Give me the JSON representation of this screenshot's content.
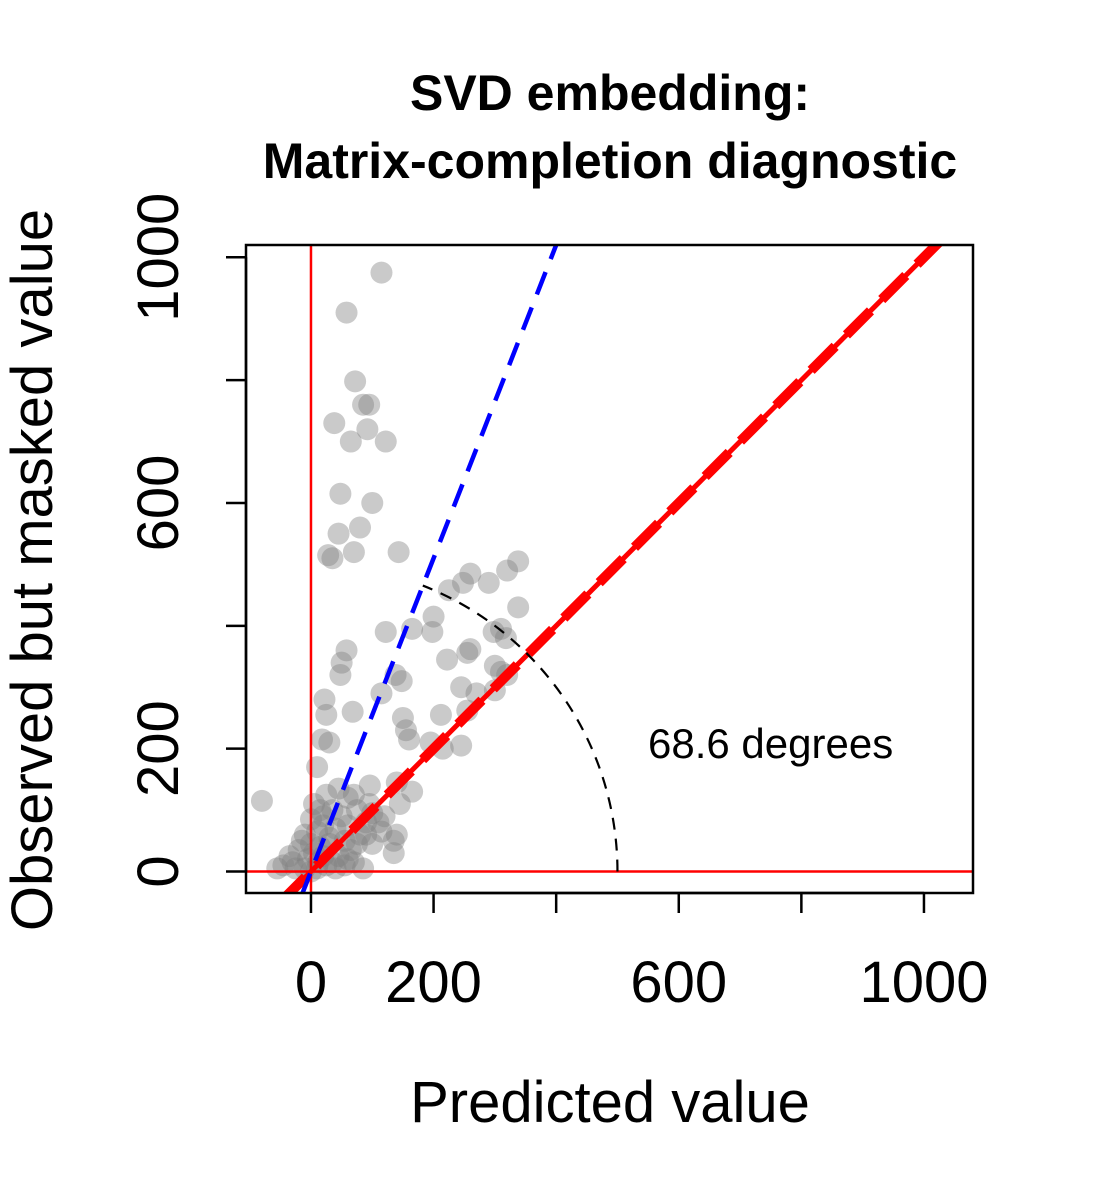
{
  "chart_data": {
    "type": "scatter",
    "title_lines": [
      "SVD embedding:",
      "Matrix-completion diagnostic"
    ],
    "xlabel": "Predicted value",
    "ylabel": "Observed but masked value",
    "xlim": [
      -106,
      1080
    ],
    "ylim": [
      -35,
      1020
    ],
    "xticks": [
      0,
      200,
      400,
      600,
      800,
      1000
    ],
    "xtick_labels": [
      "0",
      "200",
      "",
      "600",
      "",
      "1000"
    ],
    "yticks": [
      0,
      200,
      400,
      600,
      800,
      1000
    ],
    "ytick_labels": [
      "0",
      "200",
      "",
      "600",
      "",
      "1000"
    ],
    "grid": false,
    "legend": "none",
    "point_color": "#808080",
    "reference_axes_color": "#ff0000",
    "fit_line": {
      "color": "#ff0000",
      "style": "dashed",
      "slope": 1.0,
      "intercept": 0
    },
    "identity_line": {
      "color": "#ff0000",
      "style": "solid",
      "slope": 1.0,
      "intercept": 0
    },
    "steep_line": {
      "color": "#0000ff",
      "style": "dashed",
      "slope": 2.55,
      "intercept": 0
    },
    "angle_arc": {
      "radius": 500,
      "from_deg": 0,
      "to_deg": 68.6,
      "color": "#000000",
      "style": "dashed"
    },
    "annotation": "68.6 degrees",
    "points": [
      [
        -80,
        115
      ],
      [
        115,
        975
      ],
      [
        58,
        910
      ],
      [
        72,
        798
      ],
      [
        85,
        760
      ],
      [
        95,
        760
      ],
      [
        38,
        730
      ],
      [
        92,
        720
      ],
      [
        65,
        700
      ],
      [
        122,
        700
      ],
      [
        48,
        615
      ],
      [
        100,
        600
      ],
      [
        80,
        560
      ],
      [
        45,
        550
      ],
      [
        70,
        520
      ],
      [
        28,
        515
      ],
      [
        143,
        520
      ],
      [
        35,
        510
      ],
      [
        338,
        505
      ],
      [
        320,
        490
      ],
      [
        260,
        485
      ],
      [
        290,
        470
      ],
      [
        248,
        470
      ],
      [
        225,
        458
      ],
      [
        338,
        430
      ],
      [
        200,
        415
      ],
      [
        122,
        390
      ],
      [
        165,
        395
      ],
      [
        198,
        390
      ],
      [
        310,
        395
      ],
      [
        298,
        390
      ],
      [
        318,
        380
      ],
      [
        260,
        362
      ],
      [
        255,
        356
      ],
      [
        300,
        335
      ],
      [
        310,
        325
      ],
      [
        320,
        320
      ],
      [
        222,
        345
      ],
      [
        58,
        360
      ],
      [
        50,
        340
      ],
      [
        48,
        320
      ],
      [
        138,
        320
      ],
      [
        115,
        290
      ],
      [
        148,
        310
      ],
      [
        245,
        300
      ],
      [
        270,
        290
      ],
      [
        300,
        295
      ],
      [
        22,
        280
      ],
      [
        25,
        255
      ],
      [
        68,
        260
      ],
      [
        150,
        250
      ],
      [
        212,
        255
      ],
      [
        255,
        262
      ],
      [
        18,
        215
      ],
      [
        30,
        210
      ],
      [
        155,
        230
      ],
      [
        160,
        215
      ],
      [
        195,
        210
      ],
      [
        215,
        200
      ],
      [
        245,
        205
      ],
      [
        10,
        170
      ],
      [
        96,
        140
      ],
      [
        140,
        145
      ],
      [
        165,
        130
      ],
      [
        145,
        110
      ],
      [
        95,
        110
      ],
      [
        75,
        100
      ],
      [
        120,
        90
      ],
      [
        90,
        80
      ],
      [
        60,
        75
      ],
      [
        80,
        60
      ],
      [
        115,
        65
      ],
      [
        140,
        60
      ],
      [
        135,
        50
      ],
      [
        100,
        45
      ],
      [
        135,
        30
      ],
      [
        45,
        135
      ],
      [
        60,
        120
      ],
      [
        35,
        100
      ],
      [
        20,
        90
      ],
      [
        0,
        85
      ],
      [
        -10,
        60
      ],
      [
        10,
        65
      ],
      [
        20,
        75
      ],
      [
        40,
        70
      ],
      [
        55,
        50
      ],
      [
        30,
        45
      ],
      [
        15,
        40
      ],
      [
        5,
        30
      ],
      [
        -5,
        20
      ],
      [
        -20,
        35
      ],
      [
        -35,
        25
      ],
      [
        -45,
        10
      ],
      [
        -55,
        5
      ],
      [
        -25,
        5
      ],
      [
        -10,
        5
      ],
      [
        0,
        0
      ],
      [
        10,
        5
      ],
      [
        25,
        10
      ],
      [
        40,
        5
      ],
      [
        55,
        10
      ],
      [
        70,
        15
      ],
      [
        85,
        5
      ],
      [
        20,
        25
      ],
      [
        45,
        25
      ],
      [
        65,
        35
      ],
      [
        5,
        110
      ],
      [
        25,
        125
      ],
      [
        15,
        100
      ],
      [
        50,
        90
      ],
      [
        70,
        125
      ],
      [
        100,
        95
      ],
      [
        110,
        80
      ],
      [
        30,
        55
      ],
      [
        -15,
        50
      ],
      [
        0,
        45
      ],
      [
        12,
        15
      ],
      [
        60,
        20
      ],
      [
        75,
        45
      ],
      [
        90,
        60
      ],
      [
        -30,
        15
      ],
      [
        35,
        15
      ]
    ]
  }
}
